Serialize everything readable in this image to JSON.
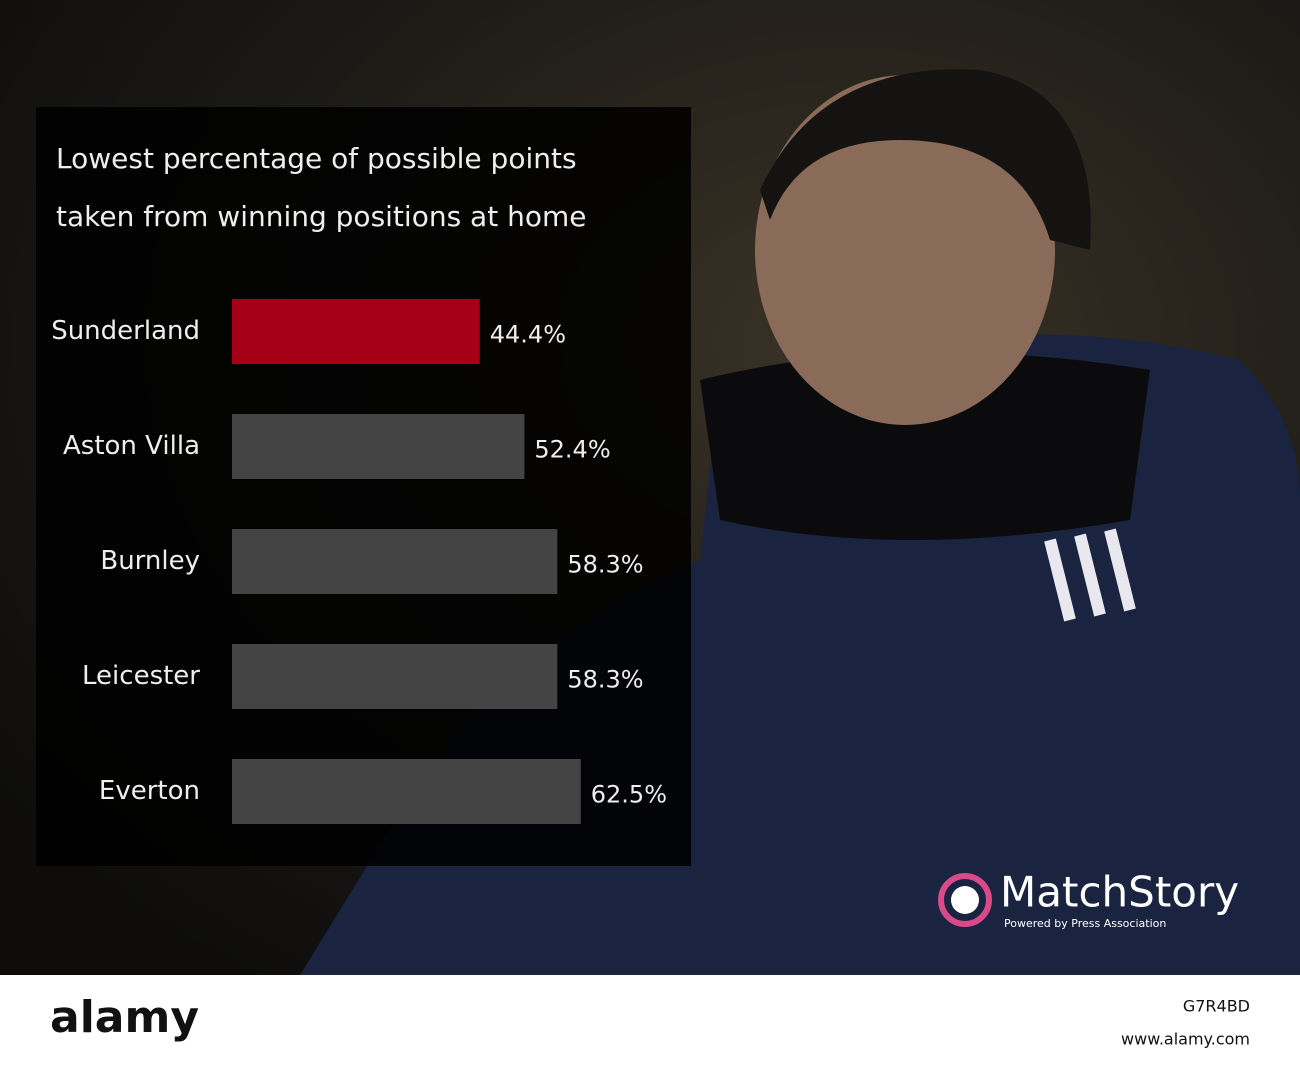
{
  "chart_data": {
    "type": "bar",
    "orientation": "horizontal",
    "title": "Lowest percentage of possible points taken from winning positions at home",
    "categories": [
      "Sunderland",
      "Aston Villa",
      "Burnley",
      "Leicester",
      "Everton"
    ],
    "values": [
      44.4,
      52.4,
      58.3,
      58.3,
      62.5
    ],
    "value_labels": [
      "44.4%",
      "52.4%",
      "58.3%",
      "58.3%",
      "62.5%"
    ],
    "colors": [
      "#a50016",
      "#444444",
      "#444444",
      "#444444",
      "#444444"
    ],
    "xlim": [
      0,
      100
    ]
  },
  "branding": {
    "logo": "MatchStory",
    "tagline": "Powered by Press Association"
  },
  "footer": {
    "brand": "alamy",
    "image_id": "G7R4BD",
    "url": "www.alamy.com"
  }
}
